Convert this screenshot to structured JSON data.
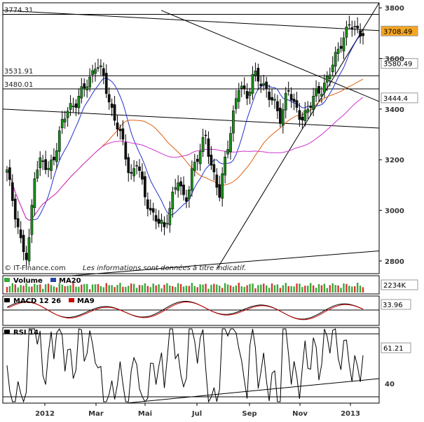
{
  "chart_data": {
    "type": "candlestick",
    "x_ticks": [
      "2012",
      "Mar",
      "Mai",
      "Jul",
      "Sep",
      "Nov",
      "2013"
    ],
    "main": {
      "y_ticks": [
        3800,
        3600,
        3400,
        3200,
        3000,
        2800
      ],
      "ylim": [
        2750,
        3820
      ],
      "horizontal_levels": [
        {
          "label": "3774.31",
          "value": 3774.31
        },
        {
          "label": "3531.91",
          "value": 3531.91
        },
        {
          "label": "3480.01",
          "value": 3480.01
        }
      ],
      "price_tags": [
        {
          "label": "3708.49",
          "value": 3708.49,
          "color": "#f5a623"
        },
        {
          "label": "3580.49",
          "value": 3580.49,
          "color": "#ffffff"
        },
        {
          "label": "3444.4",
          "value": 3444.4,
          "color": "#ffffff"
        }
      ],
      "close_samples": [
        3150,
        3020,
        2880,
        2790,
        3150,
        3200,
        3150,
        3230,
        3340,
        3400,
        3430,
        3470,
        3510,
        3590,
        3530,
        3420,
        3350,
        3250,
        3130,
        3200,
        3060,
        3000,
        2960,
        2920,
        3050,
        3120,
        3020,
        3160,
        3210,
        3300,
        3160,
        3050,
        3230,
        3370,
        3500,
        3450,
        3540,
        3500,
        3480,
        3420,
        3350,
        3500,
        3400,
        3360,
        3410,
        3450,
        3480,
        3540,
        3600,
        3680,
        3740,
        3700,
        3710
      ]
    },
    "volume": {
      "series": [
        "Volume",
        "MA20"
      ],
      "last_value": "2234K"
    },
    "macd": {
      "series": [
        "MACD 12 26",
        "MA9"
      ],
      "last_value": "33.96"
    },
    "rsi": {
      "series": [
        "RSI 14"
      ],
      "last_value": "61.21",
      "y_ticks": [
        40
      ]
    }
  },
  "credit": {
    "source": "© IT-Finance.com",
    "disclaimer": "Les informations sont données à titre indicatif."
  }
}
